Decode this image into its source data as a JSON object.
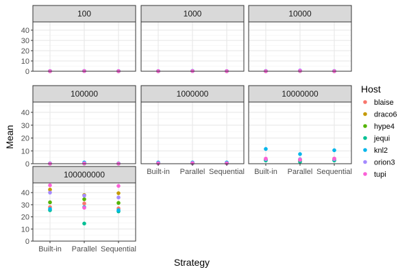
{
  "chart_data": {
    "type": "scatter",
    "facet_layout": "wrap",
    "xlabel": "Strategy",
    "ylabel": "Mean",
    "categories": [
      "Built-in",
      "Parallel",
      "Sequential"
    ],
    "ylim": [
      0,
      48
    ],
    "yticks": [
      0,
      10,
      20,
      30,
      40
    ],
    "grid": true,
    "legend": {
      "title": "Host",
      "position": "right",
      "entries": [
        {
          "name": "blaise",
          "color": "#F8766D"
        },
        {
          "name": "draco6",
          "color": "#C49A00"
        },
        {
          "name": "hype4",
          "color": "#53B400"
        },
        {
          "name": "jequi",
          "color": "#00C094"
        },
        {
          "name": "knl2",
          "color": "#00B6EB"
        },
        {
          "name": "orion3",
          "color": "#A58AFF"
        },
        {
          "name": "tupi",
          "color": "#FB61D7"
        }
      ]
    },
    "panels": [
      {
        "label": "100",
        "points": [
          {
            "host": "blaise",
            "x": "Built-in",
            "y": 0.1
          },
          {
            "host": "draco6",
            "x": "Built-in",
            "y": 0.1
          },
          {
            "host": "hype4",
            "x": "Built-in",
            "y": 0.1
          },
          {
            "host": "jequi",
            "x": "Built-in",
            "y": 0.1
          },
          {
            "host": "knl2",
            "x": "Built-in",
            "y": 0.2
          },
          {
            "host": "orion3",
            "x": "Built-in",
            "y": 0.1
          },
          {
            "host": "tupi",
            "x": "Built-in",
            "y": 0.1
          },
          {
            "host": "blaise",
            "x": "Parallel",
            "y": 0.2
          },
          {
            "host": "draco6",
            "x": "Parallel",
            "y": 0.2
          },
          {
            "host": "hype4",
            "x": "Parallel",
            "y": 0.2
          },
          {
            "host": "jequi",
            "x": "Parallel",
            "y": 0.2
          },
          {
            "host": "knl2",
            "x": "Parallel",
            "y": 0.3
          },
          {
            "host": "orion3",
            "x": "Parallel",
            "y": 0.2
          },
          {
            "host": "tupi",
            "x": "Parallel",
            "y": 0.2
          },
          {
            "host": "blaise",
            "x": "Sequential",
            "y": 0.1
          },
          {
            "host": "draco6",
            "x": "Sequential",
            "y": 0.1
          },
          {
            "host": "hype4",
            "x": "Sequential",
            "y": 0.1
          },
          {
            "host": "jequi",
            "x": "Sequential",
            "y": 0.1
          },
          {
            "host": "knl2",
            "x": "Sequential",
            "y": 0.2
          },
          {
            "host": "orion3",
            "x": "Sequential",
            "y": 0.1
          },
          {
            "host": "tupi",
            "x": "Sequential",
            "y": 0.1
          }
        ]
      },
      {
        "label": "1000",
        "points": [
          {
            "host": "blaise",
            "x": "Built-in",
            "y": 0.1
          },
          {
            "host": "draco6",
            "x": "Built-in",
            "y": 0.1
          },
          {
            "host": "hype4",
            "x": "Built-in",
            "y": 0.1
          },
          {
            "host": "jequi",
            "x": "Built-in",
            "y": 0.1
          },
          {
            "host": "knl2",
            "x": "Built-in",
            "y": 0.2
          },
          {
            "host": "orion3",
            "x": "Built-in",
            "y": 0.1
          },
          {
            "host": "tupi",
            "x": "Built-in",
            "y": 0.1
          },
          {
            "host": "blaise",
            "x": "Parallel",
            "y": 0.2
          },
          {
            "host": "draco6",
            "x": "Parallel",
            "y": 0.2
          },
          {
            "host": "hype4",
            "x": "Parallel",
            "y": 0.2
          },
          {
            "host": "jequi",
            "x": "Parallel",
            "y": 0.2
          },
          {
            "host": "knl2",
            "x": "Parallel",
            "y": 0.4
          },
          {
            "host": "orion3",
            "x": "Parallel",
            "y": 0.2
          },
          {
            "host": "tupi",
            "x": "Parallel",
            "y": 0.2
          },
          {
            "host": "blaise",
            "x": "Sequential",
            "y": 0.1
          },
          {
            "host": "draco6",
            "x": "Sequential",
            "y": 0.1
          },
          {
            "host": "hype4",
            "x": "Sequential",
            "y": 0.1
          },
          {
            "host": "jequi",
            "x": "Sequential",
            "y": 0.1
          },
          {
            "host": "knl2",
            "x": "Sequential",
            "y": 0.2
          },
          {
            "host": "orion3",
            "x": "Sequential",
            "y": 0.1
          },
          {
            "host": "tupi",
            "x": "Sequential",
            "y": 0.1
          }
        ]
      },
      {
        "label": "10000",
        "points": [
          {
            "host": "blaise",
            "x": "Built-in",
            "y": 0.1
          },
          {
            "host": "draco6",
            "x": "Built-in",
            "y": 0.1
          },
          {
            "host": "hype4",
            "x": "Built-in",
            "y": 0.1
          },
          {
            "host": "jequi",
            "x": "Built-in",
            "y": 0.1
          },
          {
            "host": "knl2",
            "x": "Built-in",
            "y": 0.3
          },
          {
            "host": "orion3",
            "x": "Built-in",
            "y": 0.1
          },
          {
            "host": "tupi",
            "x": "Built-in",
            "y": 0.1
          },
          {
            "host": "blaise",
            "x": "Parallel",
            "y": 0.3
          },
          {
            "host": "draco6",
            "x": "Parallel",
            "y": 0.3
          },
          {
            "host": "hype4",
            "x": "Parallel",
            "y": 0.3
          },
          {
            "host": "jequi",
            "x": "Parallel",
            "y": 0.3
          },
          {
            "host": "knl2",
            "x": "Parallel",
            "y": 0.6
          },
          {
            "host": "orion3",
            "x": "Parallel",
            "y": 0.8
          },
          {
            "host": "tupi",
            "x": "Parallel",
            "y": 0.3
          },
          {
            "host": "blaise",
            "x": "Sequential",
            "y": 0.1
          },
          {
            "host": "draco6",
            "x": "Sequential",
            "y": 0.1
          },
          {
            "host": "hype4",
            "x": "Sequential",
            "y": 0.1
          },
          {
            "host": "jequi",
            "x": "Sequential",
            "y": 0.1
          },
          {
            "host": "knl2",
            "x": "Sequential",
            "y": 0.3
          },
          {
            "host": "orion3",
            "x": "Sequential",
            "y": 0.1
          },
          {
            "host": "tupi",
            "x": "Sequential",
            "y": 0.1
          }
        ]
      },
      {
        "label": "100000",
        "points": [
          {
            "host": "blaise",
            "x": "Built-in",
            "y": 0.1
          },
          {
            "host": "draco6",
            "x": "Built-in",
            "y": 0.1
          },
          {
            "host": "hype4",
            "x": "Built-in",
            "y": 0.1
          },
          {
            "host": "jequi",
            "x": "Built-in",
            "y": 0.1
          },
          {
            "host": "knl2",
            "x": "Built-in",
            "y": 0.3
          },
          {
            "host": "orion3",
            "x": "Built-in",
            "y": 0.1
          },
          {
            "host": "tupi",
            "x": "Built-in",
            "y": 0.1
          },
          {
            "host": "blaise",
            "x": "Parallel",
            "y": 0.2
          },
          {
            "host": "draco6",
            "x": "Parallel",
            "y": 0.2
          },
          {
            "host": "hype4",
            "x": "Parallel",
            "y": 0.2
          },
          {
            "host": "jequi",
            "x": "Parallel",
            "y": 0.2
          },
          {
            "host": "knl2",
            "x": "Parallel",
            "y": 1.0
          },
          {
            "host": "orion3",
            "x": "Parallel",
            "y": 0.4
          },
          {
            "host": "tupi",
            "x": "Parallel",
            "y": 0.2
          },
          {
            "host": "blaise",
            "x": "Sequential",
            "y": 0.1
          },
          {
            "host": "draco6",
            "x": "Sequential",
            "y": 0.1
          },
          {
            "host": "hype4",
            "x": "Sequential",
            "y": 0.1
          },
          {
            "host": "jequi",
            "x": "Sequential",
            "y": 0.1
          },
          {
            "host": "knl2",
            "x": "Sequential",
            "y": 0.3
          },
          {
            "host": "orion3",
            "x": "Sequential",
            "y": 0.1
          },
          {
            "host": "tupi",
            "x": "Sequential",
            "y": 0.1
          }
        ]
      },
      {
        "label": "1000000",
        "points": [
          {
            "host": "blaise",
            "x": "Built-in",
            "y": 0.3
          },
          {
            "host": "draco6",
            "x": "Built-in",
            "y": 0.4
          },
          {
            "host": "hype4",
            "x": "Built-in",
            "y": 0.3
          },
          {
            "host": "jequi",
            "x": "Built-in",
            "y": 0.3
          },
          {
            "host": "knl2",
            "x": "Built-in",
            "y": 1.0
          },
          {
            "host": "orion3",
            "x": "Built-in",
            "y": 0.4
          },
          {
            "host": "tupi",
            "x": "Built-in",
            "y": 0.4
          },
          {
            "host": "blaise",
            "x": "Parallel",
            "y": 0.4
          },
          {
            "host": "draco6",
            "x": "Parallel",
            "y": 0.5
          },
          {
            "host": "hype4",
            "x": "Parallel",
            "y": 0.4
          },
          {
            "host": "jequi",
            "x": "Parallel",
            "y": 0.3
          },
          {
            "host": "knl2",
            "x": "Parallel",
            "y": 1.0
          },
          {
            "host": "orion3",
            "x": "Parallel",
            "y": 0.5
          },
          {
            "host": "tupi",
            "x": "Parallel",
            "y": 0.5
          },
          {
            "host": "blaise",
            "x": "Sequential",
            "y": 0.3
          },
          {
            "host": "draco6",
            "x": "Sequential",
            "y": 0.4
          },
          {
            "host": "hype4",
            "x": "Sequential",
            "y": 0.3
          },
          {
            "host": "jequi",
            "x": "Sequential",
            "y": 0.3
          },
          {
            "host": "knl2",
            "x": "Sequential",
            "y": 1.0
          },
          {
            "host": "orion3",
            "x": "Sequential",
            "y": 0.4
          },
          {
            "host": "tupi",
            "x": "Sequential",
            "y": 0.4
          }
        ]
      },
      {
        "label": "10000000",
        "points": [
          {
            "host": "blaise",
            "x": "Built-in",
            "y": 3.0
          },
          {
            "host": "draco6",
            "x": "Built-in",
            "y": 3.5
          },
          {
            "host": "hype4",
            "x": "Built-in",
            "y": 3.0
          },
          {
            "host": "jequi",
            "x": "Built-in",
            "y": 2.5
          },
          {
            "host": "knl2",
            "x": "Built-in",
            "y": 11.5
          },
          {
            "host": "orion3",
            "x": "Built-in",
            "y": 3.5
          },
          {
            "host": "tupi",
            "x": "Built-in",
            "y": 4.0
          },
          {
            "host": "blaise",
            "x": "Parallel",
            "y": 3.0
          },
          {
            "host": "draco6",
            "x": "Parallel",
            "y": 3.5
          },
          {
            "host": "hype4",
            "x": "Parallel",
            "y": 2.5
          },
          {
            "host": "jequi",
            "x": "Parallel",
            "y": 1.5
          },
          {
            "host": "knl2",
            "x": "Parallel",
            "y": 7.5
          },
          {
            "host": "orion3",
            "x": "Parallel",
            "y": 3.5
          },
          {
            "host": "tupi",
            "x": "Parallel",
            "y": 3.0
          },
          {
            "host": "blaise",
            "x": "Sequential",
            "y": 3.0
          },
          {
            "host": "draco6",
            "x": "Sequential",
            "y": 4.0
          },
          {
            "host": "hype4",
            "x": "Sequential",
            "y": 3.0
          },
          {
            "host": "jequi",
            "x": "Sequential",
            "y": 2.5
          },
          {
            "host": "knl2",
            "x": "Sequential",
            "y": 10.5
          },
          {
            "host": "orion3",
            "x": "Sequential",
            "y": 3.5
          },
          {
            "host": "tupi",
            "x": "Sequential",
            "y": 4.0
          }
        ]
      },
      {
        "label": "100000000",
        "points": [
          {
            "host": "blaise",
            "x": "Built-in",
            "y": 28.0
          },
          {
            "host": "draco6",
            "x": "Built-in",
            "y": 42.5
          },
          {
            "host": "hype4",
            "x": "Built-in",
            "y": 32.0
          },
          {
            "host": "jequi",
            "x": "Built-in",
            "y": 25.5
          },
          {
            "host": "knl2",
            "x": "Built-in",
            "y": 26.5
          },
          {
            "host": "orion3",
            "x": "Built-in",
            "y": 40.0
          },
          {
            "host": "tupi",
            "x": "Built-in",
            "y": 46.0
          },
          {
            "host": "blaise",
            "x": "Parallel",
            "y": 31.0
          },
          {
            "host": "draco6",
            "x": "Parallel",
            "y": 38.0
          },
          {
            "host": "hype4",
            "x": "Parallel",
            "y": 34.5
          },
          {
            "host": "jequi",
            "x": "Parallel",
            "y": 14.5
          },
          {
            "host": "knl2",
            "x": "Parallel",
            "y": 28.0
          },
          {
            "host": "orion3",
            "x": "Parallel",
            "y": 37.5
          },
          {
            "host": "tupi",
            "x": "Parallel",
            "y": 27.5
          },
          {
            "host": "blaise",
            "x": "Sequential",
            "y": 27.0
          },
          {
            "host": "draco6",
            "x": "Sequential",
            "y": 39.5
          },
          {
            "host": "hype4",
            "x": "Sequential",
            "y": 31.5
          },
          {
            "host": "jequi",
            "x": "Sequential",
            "y": 24.5
          },
          {
            "host": "knl2",
            "x": "Sequential",
            "y": 25.5
          },
          {
            "host": "orion3",
            "x": "Sequential",
            "y": 36.0
          },
          {
            "host": "tupi",
            "x": "Sequential",
            "y": 45.5
          }
        ]
      }
    ]
  }
}
